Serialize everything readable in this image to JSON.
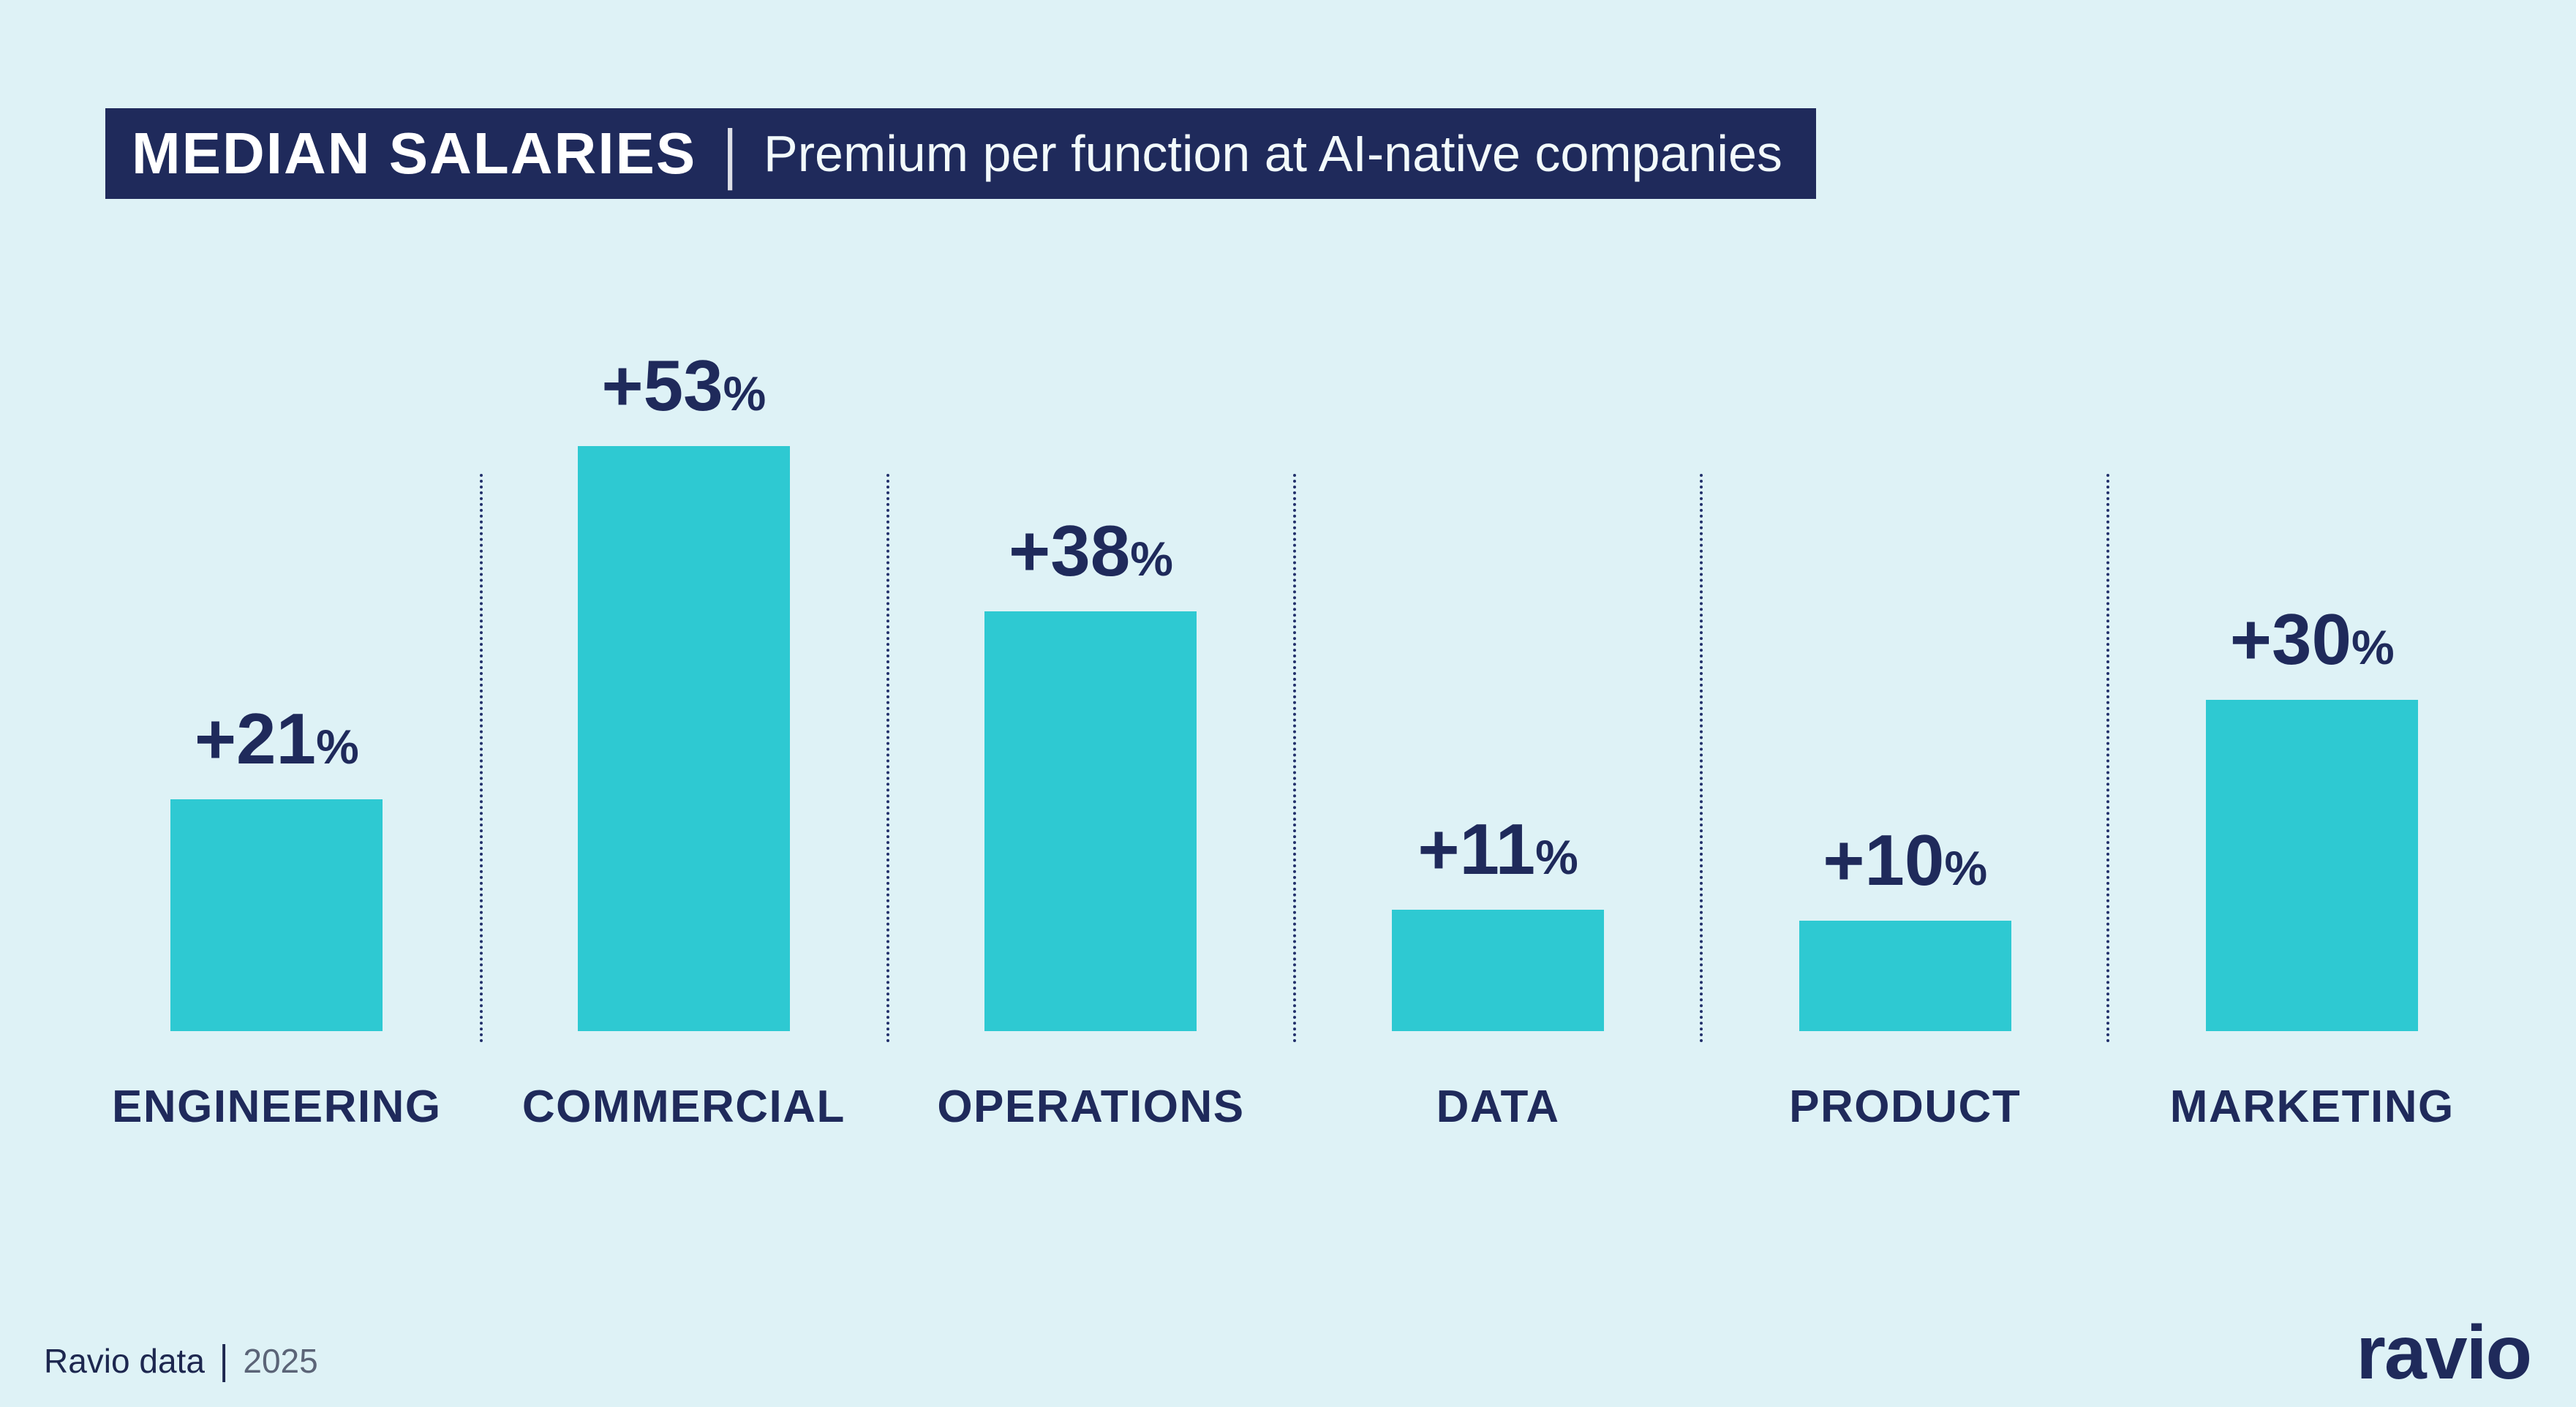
{
  "page": {
    "background_color": "#def2f6",
    "navy_color": "#1f2a5b",
    "teal_color": "#2ec9d2"
  },
  "header": {
    "title": "MEDIAN SALARIES",
    "divider": "|",
    "subtitle": "Premium per function at AI-native companies"
  },
  "chart_data": {
    "type": "bar",
    "title": "MEDIAN SALARIES",
    "subtitle": "Premium per function at AI-native companies",
    "categories": [
      "ENGINEERING",
      "COMMERCIAL",
      "OPERATIONS",
      "DATA",
      "PRODUCT",
      "MARKETING"
    ],
    "values": [
      21,
      53,
      38,
      11,
      10,
      30
    ],
    "value_labels": [
      "+21",
      "+53",
      "+38",
      "+11",
      "+10",
      "+30"
    ],
    "percent_sign": "%",
    "unit": "percent",
    "ylim": [
      0,
      53
    ],
    "bar_color": "#2ec9d2",
    "label_color": "#1f2a5b",
    "grid": "dotted vertical separators between categories",
    "legend": "none"
  },
  "footer": {
    "source": "Ravio data",
    "divider": "|",
    "year": "2025",
    "logo": "ravio"
  }
}
